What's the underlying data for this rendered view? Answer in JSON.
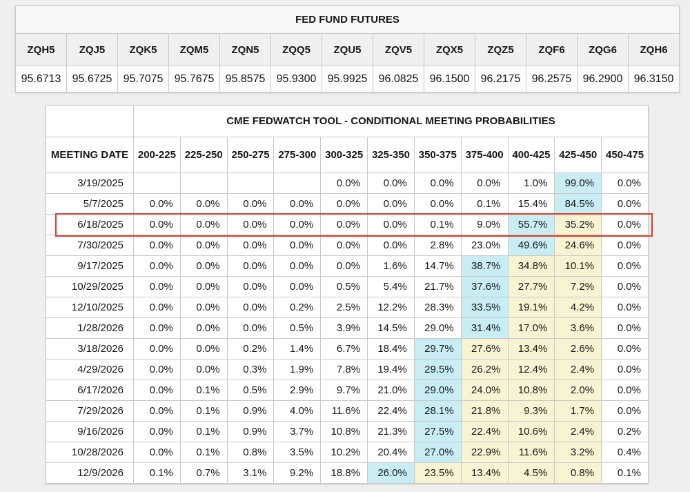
{
  "futures_table": {
    "title": "FED FUND FUTURES",
    "columns": [
      "ZQH5",
      "ZQJ5",
      "ZQK5",
      "ZQM5",
      "ZQN5",
      "ZQQ5",
      "ZQU5",
      "ZQV5",
      "ZQX5",
      "ZQZ5",
      "ZQF6",
      "ZQG6",
      "ZQH6"
    ],
    "values": [
      "95.6713",
      "95.6725",
      "95.7075",
      "95.7675",
      "95.8575",
      "95.9300",
      "95.9925",
      "96.0825",
      "96.1500",
      "96.2175",
      "96.2575",
      "96.2900",
      "96.3150"
    ]
  },
  "fedwatch_table": {
    "title": "CME FEDWATCH TOOL - CONDITIONAL MEETING PROBABILITIES",
    "date_header": "MEETING DATE",
    "rate_columns": [
      "200-225",
      "225-250",
      "250-275",
      "275-300",
      "300-325",
      "325-350",
      "350-375",
      "375-400",
      "400-425",
      "425-450",
      "450-475"
    ],
    "highlight_colors": {
      "cyan": "#c8edf5",
      "yellow": "#f8f4d3",
      "selected_border": "#d93b2a"
    },
    "selected_date": "6/18/2025",
    "rows": [
      {
        "date": "3/19/2025",
        "selected": false,
        "values": [
          "",
          "",
          "",
          "",
          "0.0%",
          "0.0%",
          "0.0%",
          "0.0%",
          "1.0%",
          "99.0%",
          "0.0%"
        ],
        "highlights": [
          "",
          "",
          "",
          "",
          "",
          "",
          "",
          "",
          "",
          "cyan",
          ""
        ]
      },
      {
        "date": "5/7/2025",
        "selected": false,
        "values": [
          "0.0%",
          "0.0%",
          "0.0%",
          "0.0%",
          "0.0%",
          "0.0%",
          "0.0%",
          "0.1%",
          "15.4%",
          "84.5%",
          "0.0%"
        ],
        "highlights": [
          "",
          "",
          "",
          "",
          "",
          "",
          "",
          "",
          "",
          "cyan",
          ""
        ]
      },
      {
        "date": "6/18/2025",
        "selected": true,
        "values": [
          "0.0%",
          "0.0%",
          "0.0%",
          "0.0%",
          "0.0%",
          "0.0%",
          "0.1%",
          "9.0%",
          "55.7%",
          "35.2%",
          "0.0%"
        ],
        "highlights": [
          "",
          "",
          "",
          "",
          "",
          "",
          "",
          "",
          "cyan",
          "yellow",
          ""
        ]
      },
      {
        "date": "7/30/2025",
        "selected": false,
        "values": [
          "0.0%",
          "0.0%",
          "0.0%",
          "0.0%",
          "0.0%",
          "0.0%",
          "2.8%",
          "23.0%",
          "49.6%",
          "24.6%",
          "0.0%"
        ],
        "highlights": [
          "",
          "",
          "",
          "",
          "",
          "",
          "",
          "",
          "cyan",
          "yellow",
          ""
        ]
      },
      {
        "date": "9/17/2025",
        "selected": false,
        "values": [
          "0.0%",
          "0.0%",
          "0.0%",
          "0.0%",
          "0.0%",
          "1.6%",
          "14.7%",
          "38.7%",
          "34.8%",
          "10.1%",
          "0.0%"
        ],
        "highlights": [
          "",
          "",
          "",
          "",
          "",
          "",
          "",
          "cyan",
          "yellow",
          "yellow",
          ""
        ]
      },
      {
        "date": "10/29/2025",
        "selected": false,
        "values": [
          "0.0%",
          "0.0%",
          "0.0%",
          "0.0%",
          "0.5%",
          "5.4%",
          "21.7%",
          "37.6%",
          "27.7%",
          "7.2%",
          "0.0%"
        ],
        "highlights": [
          "",
          "",
          "",
          "",
          "",
          "",
          "",
          "cyan",
          "yellow",
          "yellow",
          ""
        ]
      },
      {
        "date": "12/10/2025",
        "selected": false,
        "values": [
          "0.0%",
          "0.0%",
          "0.0%",
          "0.2%",
          "2.5%",
          "12.2%",
          "28.3%",
          "33.5%",
          "19.1%",
          "4.2%",
          "0.0%"
        ],
        "highlights": [
          "",
          "",
          "",
          "",
          "",
          "",
          "",
          "cyan",
          "yellow",
          "yellow",
          ""
        ]
      },
      {
        "date": "1/28/2026",
        "selected": false,
        "values": [
          "0.0%",
          "0.0%",
          "0.0%",
          "0.5%",
          "3.9%",
          "14.5%",
          "29.0%",
          "31.4%",
          "17.0%",
          "3.6%",
          "0.0%"
        ],
        "highlights": [
          "",
          "",
          "",
          "",
          "",
          "",
          "",
          "cyan",
          "yellow",
          "yellow",
          ""
        ]
      },
      {
        "date": "3/18/2026",
        "selected": false,
        "values": [
          "0.0%",
          "0.0%",
          "0.2%",
          "1.4%",
          "6.7%",
          "18.4%",
          "29.7%",
          "27.6%",
          "13.4%",
          "2.6%",
          "0.0%"
        ],
        "highlights": [
          "",
          "",
          "",
          "",
          "",
          "",
          "cyan",
          "yellow",
          "yellow",
          "yellow",
          ""
        ]
      },
      {
        "date": "4/29/2026",
        "selected": false,
        "values": [
          "0.0%",
          "0.0%",
          "0.3%",
          "1.9%",
          "7.8%",
          "19.4%",
          "29.5%",
          "26.2%",
          "12.4%",
          "2.4%",
          "0.0%"
        ],
        "highlights": [
          "",
          "",
          "",
          "",
          "",
          "",
          "cyan",
          "yellow",
          "yellow",
          "yellow",
          ""
        ]
      },
      {
        "date": "6/17/2026",
        "selected": false,
        "values": [
          "0.0%",
          "0.1%",
          "0.5%",
          "2.9%",
          "9.7%",
          "21.0%",
          "29.0%",
          "24.0%",
          "10.8%",
          "2.0%",
          "0.0%"
        ],
        "highlights": [
          "",
          "",
          "",
          "",
          "",
          "",
          "cyan",
          "yellow",
          "yellow",
          "yellow",
          ""
        ]
      },
      {
        "date": "7/29/2026",
        "selected": false,
        "values": [
          "0.0%",
          "0.1%",
          "0.9%",
          "4.0%",
          "11.6%",
          "22.4%",
          "28.1%",
          "21.8%",
          "9.3%",
          "1.7%",
          "0.0%"
        ],
        "highlights": [
          "",
          "",
          "",
          "",
          "",
          "",
          "cyan",
          "yellow",
          "yellow",
          "yellow",
          ""
        ]
      },
      {
        "date": "9/16/2026",
        "selected": false,
        "values": [
          "0.0%",
          "0.1%",
          "0.9%",
          "3.7%",
          "10.8%",
          "21.3%",
          "27.5%",
          "22.4%",
          "10.6%",
          "2.4%",
          "0.2%"
        ],
        "highlights": [
          "",
          "",
          "",
          "",
          "",
          "",
          "cyan",
          "yellow",
          "yellow",
          "yellow",
          ""
        ]
      },
      {
        "date": "10/28/2026",
        "selected": false,
        "values": [
          "0.0%",
          "0.1%",
          "0.8%",
          "3.5%",
          "10.2%",
          "20.4%",
          "27.0%",
          "22.9%",
          "11.6%",
          "3.2%",
          "0.4%"
        ],
        "highlights": [
          "",
          "",
          "",
          "",
          "",
          "",
          "cyan",
          "yellow",
          "yellow",
          "yellow",
          ""
        ]
      },
      {
        "date": "12/9/2026",
        "selected": false,
        "values": [
          "0.1%",
          "0.7%",
          "3.1%",
          "9.2%",
          "18.8%",
          "26.0%",
          "23.5%",
          "13.4%",
          "4.5%",
          "0.8%",
          "0.1%"
        ],
        "highlights": [
          "",
          "",
          "",
          "",
          "",
          "cyan",
          "yellow",
          "yellow",
          "yellow",
          "yellow",
          ""
        ]
      }
    ]
  }
}
